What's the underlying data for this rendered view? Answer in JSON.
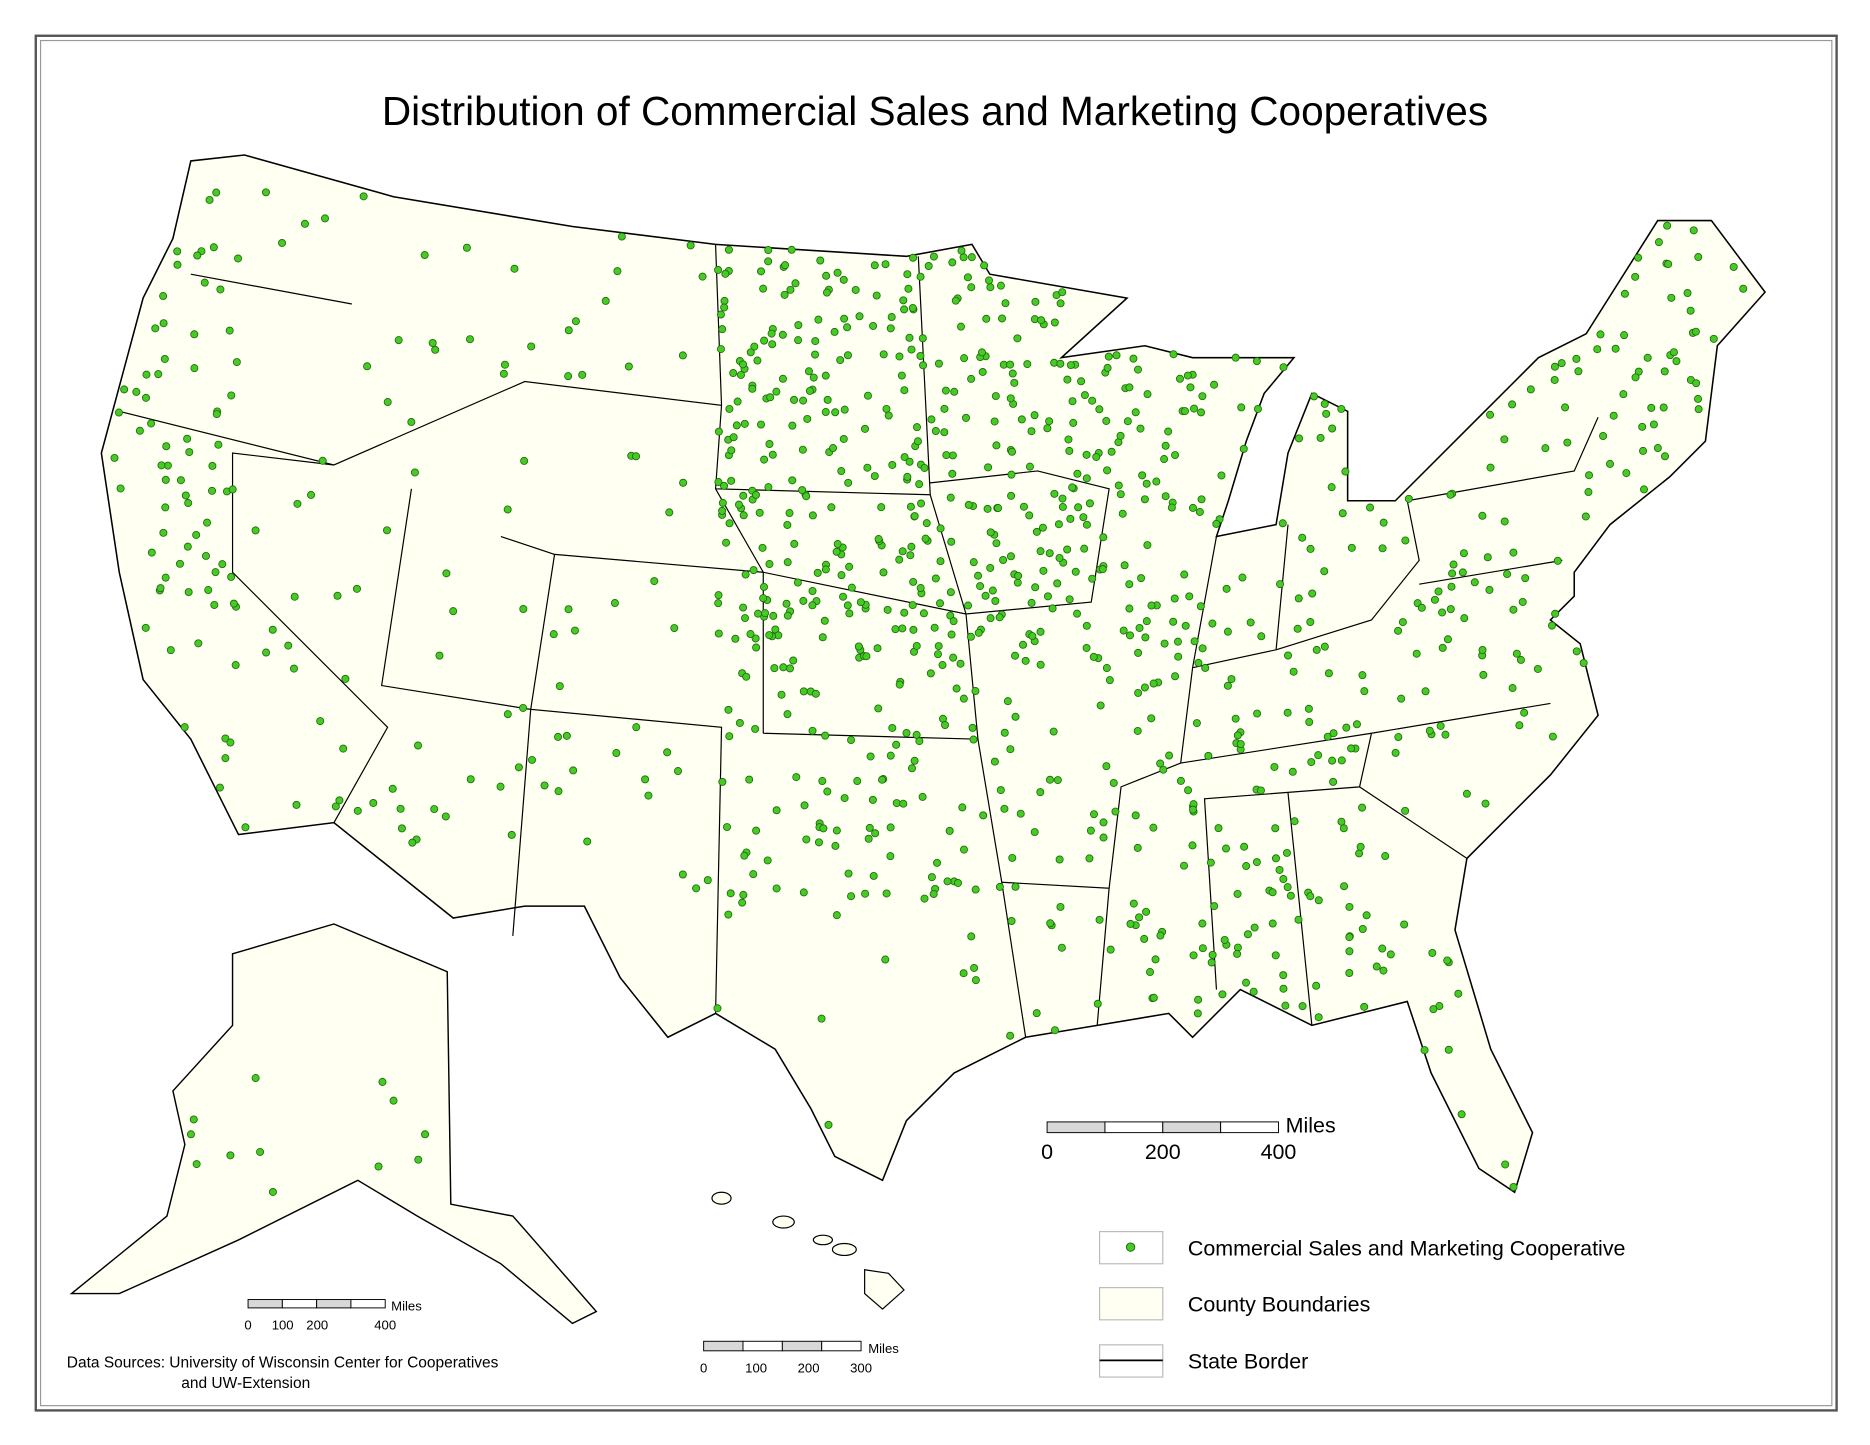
{
  "title": "Distribution of Commercial Sales and Marketing Cooperatives",
  "scale_bars": [
    {
      "unit": "Miles",
      "labels": [
        0,
        200,
        400
      ]
    },
    {
      "unit": "Miles",
      "labels": [
        0,
        100,
        200,
        400
      ]
    },
    {
      "unit": "Miles",
      "labels": [
        0,
        100,
        200,
        300
      ]
    }
  ],
  "legend": [
    {
      "label": "Commercial Sales and Marketing Cooperative"
    },
    {
      "label": "County Boundaries"
    },
    {
      "label": "State Border"
    }
  ],
  "source": [
    "Data Sources: University of Wisconsin Center for Cooperatives",
    "and UW-Extension"
  ]
}
